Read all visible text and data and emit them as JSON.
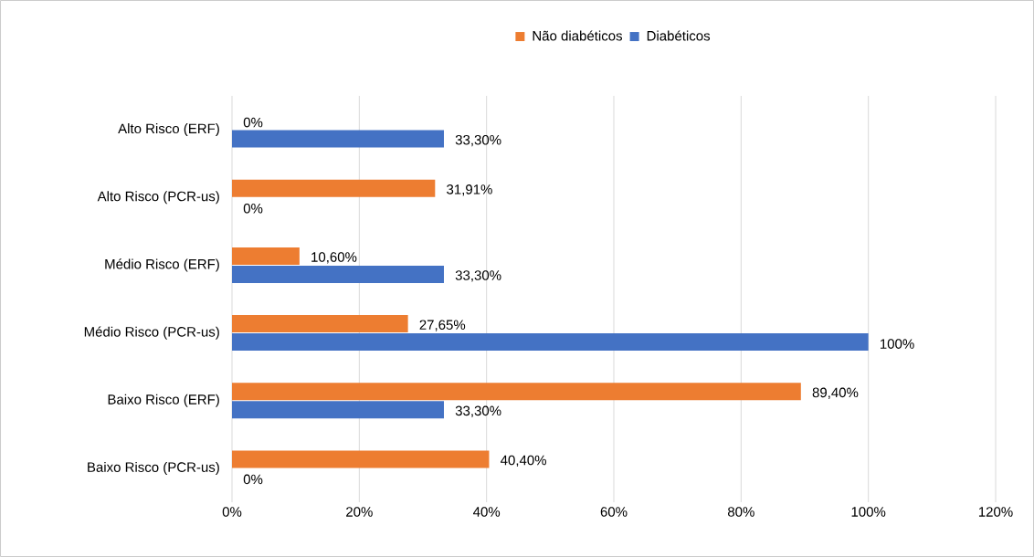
{
  "chart_data": {
    "type": "bar",
    "orientation": "horizontal",
    "categories": [
      "Alto Risco (ERF)",
      "Alto Risco (PCR-us)",
      "Médio Risco (ERF)",
      "Médio Risco (PCR-us)",
      "Baixo Risco (ERF)",
      "Baixo Risco (PCR-us)"
    ],
    "series": [
      {
        "name": "Não diabéticos",
        "color": "#ed7d31",
        "values": [
          0,
          31.91,
          10.6,
          27.65,
          89.4,
          40.4
        ],
        "value_labels": [
          "0%",
          "31,91%",
          "10,60%",
          "27,65%",
          "89,40%",
          "40,40%"
        ]
      },
      {
        "name": "Diabéticos",
        "color": "#4472c4",
        "values": [
          33.3,
          0,
          33.3,
          100,
          33.3,
          0
        ],
        "value_labels": [
          "33,30%",
          "0%",
          "33,30%",
          "100%",
          "33,30%",
          "0%"
        ]
      }
    ],
    "xlim": [
      0,
      120
    ],
    "xticks": [
      {
        "value": 0,
        "label": "0%"
      },
      {
        "value": 20,
        "label": "20%"
      },
      {
        "value": 40,
        "label": "40%"
      },
      {
        "value": 60,
        "label": "60%"
      },
      {
        "value": 80,
        "label": "80%"
      },
      {
        "value": 100,
        "label": "100%"
      },
      {
        "value": 120,
        "label": "120%"
      }
    ],
    "grid": "x",
    "legend": "top"
  }
}
